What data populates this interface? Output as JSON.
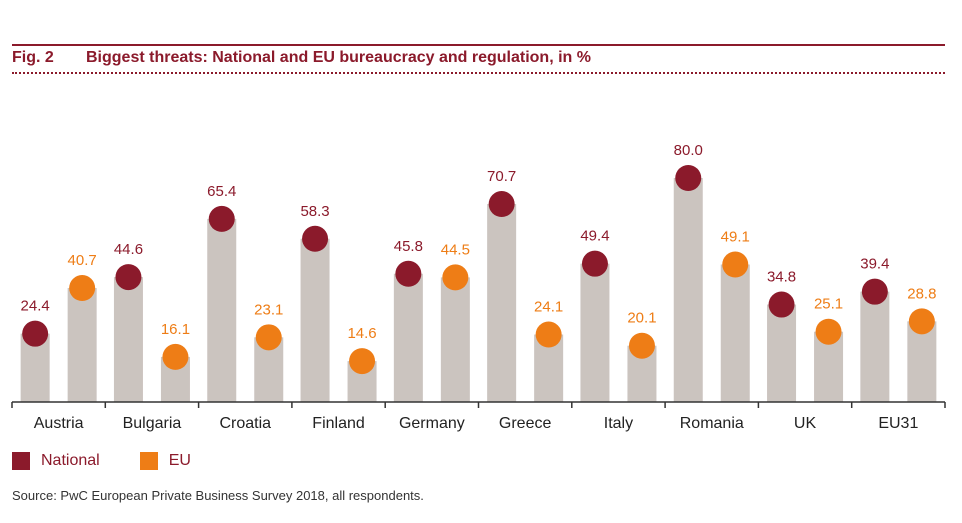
{
  "figure": {
    "number": "Fig. 2",
    "title": "Biggest threats: National and EU bureaucracy and regulation, in %"
  },
  "source": "Source: PwC European Private Business Survey 2018, all respondents.",
  "colors": {
    "national": "#8b1a2b",
    "eu": "#ee7d16",
    "bar": "#cbc4bf",
    "axis": "#333333"
  },
  "chart_data": {
    "type": "bar",
    "title": "Biggest threats: National and EU bureaucracy and regulation, in %",
    "categories": [
      "Austria",
      "Bulgaria",
      "Croatia",
      "Finland",
      "Germany",
      "Greece",
      "Italy",
      "Romania",
      "UK",
      "EU31"
    ],
    "series": [
      {
        "name": "National",
        "values": [
          24.4,
          44.6,
          65.4,
          58.3,
          45.8,
          70.7,
          49.4,
          80.0,
          34.8,
          39.4
        ]
      },
      {
        "name": "EU",
        "values": [
          40.7,
          16.1,
          23.1,
          14.6,
          44.5,
          24.1,
          20.1,
          49.1,
          25.1,
          28.8
        ]
      }
    ],
    "ylim": [
      0,
      100
    ],
    "grid": false,
    "legend": "bottom-left",
    "data_labels": true
  }
}
